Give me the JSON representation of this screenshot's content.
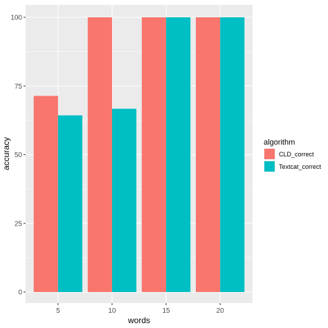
{
  "chart_data": {
    "type": "bar",
    "title": "",
    "xlabel": "words",
    "ylabel": "accuracy",
    "categories": [
      "5",
      "10",
      "15",
      "20"
    ],
    "series": [
      {
        "name": "CLD_correct",
        "values": [
          71.4,
          100,
          100,
          100
        ],
        "color": "#f8766d"
      },
      {
        "name": "Textcat_correct",
        "values": [
          64.3,
          66.7,
          100,
          100
        ],
        "color": "#00bfc4"
      }
    ],
    "ylim": [
      0,
      100
    ],
    "yticks": [
      0,
      25,
      50,
      75,
      100
    ],
    "grid": true,
    "legend": {
      "title": "algorithm",
      "position": "right"
    },
    "colors": {
      "panel": "#ebebeb",
      "gridline": "#ffffff"
    }
  }
}
